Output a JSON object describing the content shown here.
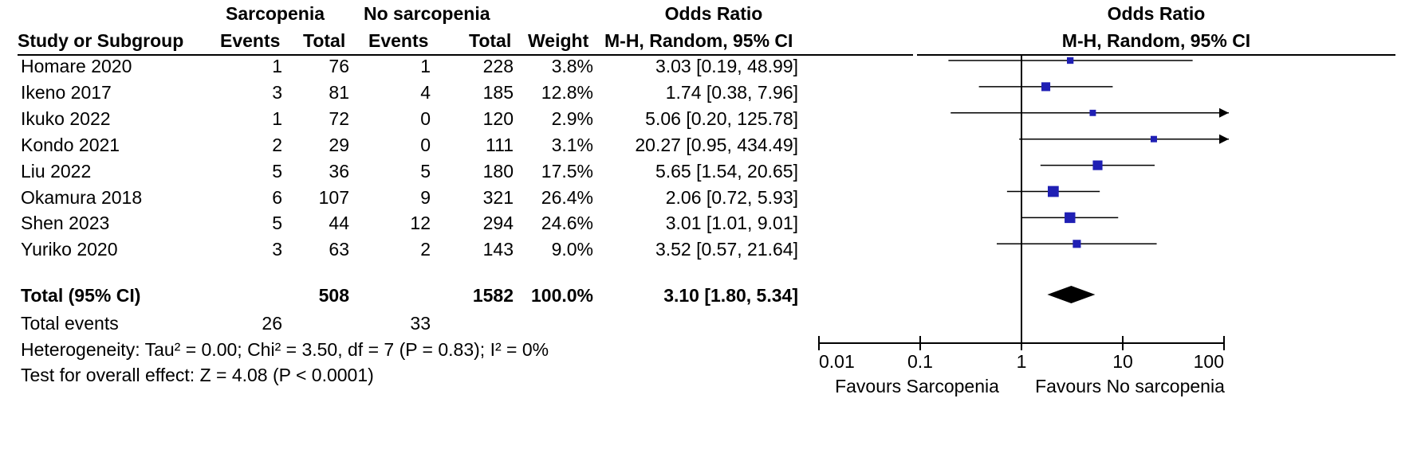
{
  "headers": {
    "group1": "Sarcopenia",
    "group2": "No sarcopenia",
    "effect": "Odds Ratio",
    "study": "Study or Subgroup",
    "events1": "Events",
    "total1": "Total",
    "events2": "Events",
    "total2": "Total",
    "weight": "Weight",
    "method": "M-H, Random, 95% CI",
    "plot_effect": "Odds Ratio",
    "plot_method": "M-H, Random, 95% CI"
  },
  "rows": [
    {
      "study": "Homare 2020",
      "e1": "1",
      "t1": "76",
      "e2": "1",
      "t2": "228",
      "weight": "3.8%",
      "ci": "3.03 [0.19, 48.99]"
    },
    {
      "study": "Ikeno 2017",
      "e1": "3",
      "t1": "81",
      "e2": "4",
      "t2": "185",
      "weight": "12.8%",
      "ci": "1.74 [0.38, 7.96]"
    },
    {
      "study": "Ikuko 2022",
      "e1": "1",
      "t1": "72",
      "e2": "0",
      "t2": "120",
      "weight": "2.9%",
      "ci": "5.06 [0.20, 125.78]"
    },
    {
      "study": "Kondo 2021",
      "e1": "2",
      "t1": "29",
      "e2": "0",
      "t2": "111",
      "weight": "3.1%",
      "ci": "20.27 [0.95, 434.49]"
    },
    {
      "study": "Liu 2022",
      "e1": "5",
      "t1": "36",
      "e2": "5",
      "t2": "180",
      "weight": "17.5%",
      "ci": "5.65 [1.54, 20.65]"
    },
    {
      "study": "Okamura 2018",
      "e1": "6",
      "t1": "107",
      "e2": "9",
      "t2": "321",
      "weight": "26.4%",
      "ci": "2.06 [0.72, 5.93]"
    },
    {
      "study": "Shen 2023",
      "e1": "5",
      "t1": "44",
      "e2": "12",
      "t2": "294",
      "weight": "24.6%",
      "ci": "3.01 [1.01, 9.01]"
    },
    {
      "study": "Yuriko 2020",
      "e1": "3",
      "t1": "63",
      "e2": "2",
      "t2": "143",
      "weight": "9.0%",
      "ci": "3.52 [0.57, 21.64]"
    }
  ],
  "total": {
    "label": "Total (95% CI)",
    "t1": "508",
    "t2": "1582",
    "weight": "100.0%",
    "ci": "3.10 [1.80, 5.34]"
  },
  "events": {
    "label": "Total events",
    "e1": "26",
    "e2": "33"
  },
  "heterogeneity": "Heterogeneity: Tau² = 0.00; Chi² = 3.50, df = 7 (P = 0.83); I² = 0%",
  "overall": "Test for overall effect: Z = 4.08 (P < 0.0001)",
  "axis": {
    "ticks": [
      "0.01",
      "0.1",
      "1",
      "10",
      "100"
    ],
    "favours_left": "Favours Sarcopenia",
    "favours_right": "Favours No sarcopenia"
  },
  "colors": {
    "marker": "#1f1fb4",
    "ink": "#000000"
  },
  "chart_data": {
    "type": "forest",
    "scale": "log",
    "xlim": [
      0.01,
      100
    ],
    "reference_line": 1,
    "studies": [
      {
        "name": "Homare 2020",
        "or": 3.03,
        "lo": 0.19,
        "hi": 48.99,
        "weight": 3.8
      },
      {
        "name": "Ikeno 2017",
        "or": 1.74,
        "lo": 0.38,
        "hi": 7.96,
        "weight": 12.8
      },
      {
        "name": "Ikuko 2022",
        "or": 5.06,
        "lo": 0.2,
        "hi": 125.78,
        "weight": 2.9
      },
      {
        "name": "Kondo 2021",
        "or": 20.27,
        "lo": 0.95,
        "hi": 434.49,
        "weight": 3.1
      },
      {
        "name": "Liu 2022",
        "or": 5.65,
        "lo": 1.54,
        "hi": 20.65,
        "weight": 17.5
      },
      {
        "name": "Okamura 2018",
        "or": 2.06,
        "lo": 0.72,
        "hi": 5.93,
        "weight": 26.4
      },
      {
        "name": "Shen 2023",
        "or": 3.01,
        "lo": 1.01,
        "hi": 9.01,
        "weight": 24.6
      },
      {
        "name": "Yuriko 2020",
        "or": 3.52,
        "lo": 0.57,
        "hi": 21.64,
        "weight": 9.0
      }
    ],
    "pooled": {
      "or": 3.1,
      "lo": 1.8,
      "hi": 5.34
    }
  }
}
